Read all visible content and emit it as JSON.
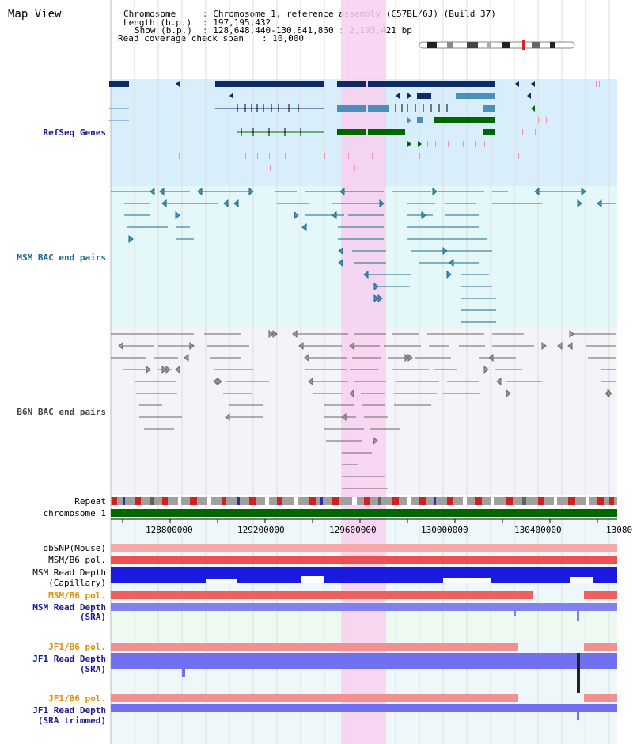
{
  "page": {
    "title": "Map View"
  },
  "info": {
    "chromosome_key": "Chromosome",
    "chromosome_val": ": Chromosome 1, reference assembly (C57BL/6J) (Build 37)",
    "length_key": "Length (b.p.)",
    "length_val": ": 197,195,432",
    "show_key": "Show (b.p.)",
    "show_val": ": 128,648,440-130,841,860 : 2,193,421 bp",
    "coverage_key": "Read coverage check span",
    "coverage_val": ": 10,000"
  },
  "tracks": {
    "refseq": "RefSeq Genes",
    "msm_bac": "MSM BAC end pairs",
    "b6n_bac": "B6N BAC end pairs",
    "repeat": "Repeat",
    "chromosome": "chromosome 1",
    "dbsnp": "dbSNP(Mouse)",
    "msm_b6_pol": "MSM/B6 pol.",
    "msm_read_depth_cap_1": "MSM Read Depth",
    "msm_read_depth_cap_2": "(Capillary)",
    "msm_b6_pol_2": "MSM/B6 pol.",
    "msm_read_depth_sra_1": "MSM Read Depth",
    "msm_read_depth_sra_2": "(SRA)",
    "jf1_b6_pol": "JF1/B6 pol.",
    "jf1_read_depth_1": "JF1 Read Depth",
    "jf1_read_depth_2": "(SRA)",
    "jf1_b6_pol_2": "JF1/B6 pol.",
    "jf1_read_depth_trim_1": "JF1 Read Depth",
    "jf1_read_depth_trim_2": "(SRA trimmed)"
  },
  "axis": {
    "ticks": [
      "128800000",
      "129200000",
      "129600000",
      "130000000",
      "130400000",
      "13080"
    ]
  },
  "colors": {
    "refseq_bg": "#d8eefa",
    "msm_bg": "#e4f8fa",
    "b6n_bg": "#f4f4f8",
    "highlight": "#f8d0f0",
    "chromosome": "#006600",
    "navy_gene": "#0c2a66",
    "teal_gene": "#4a90b8",
    "green_gene": "#006600"
  }
}
